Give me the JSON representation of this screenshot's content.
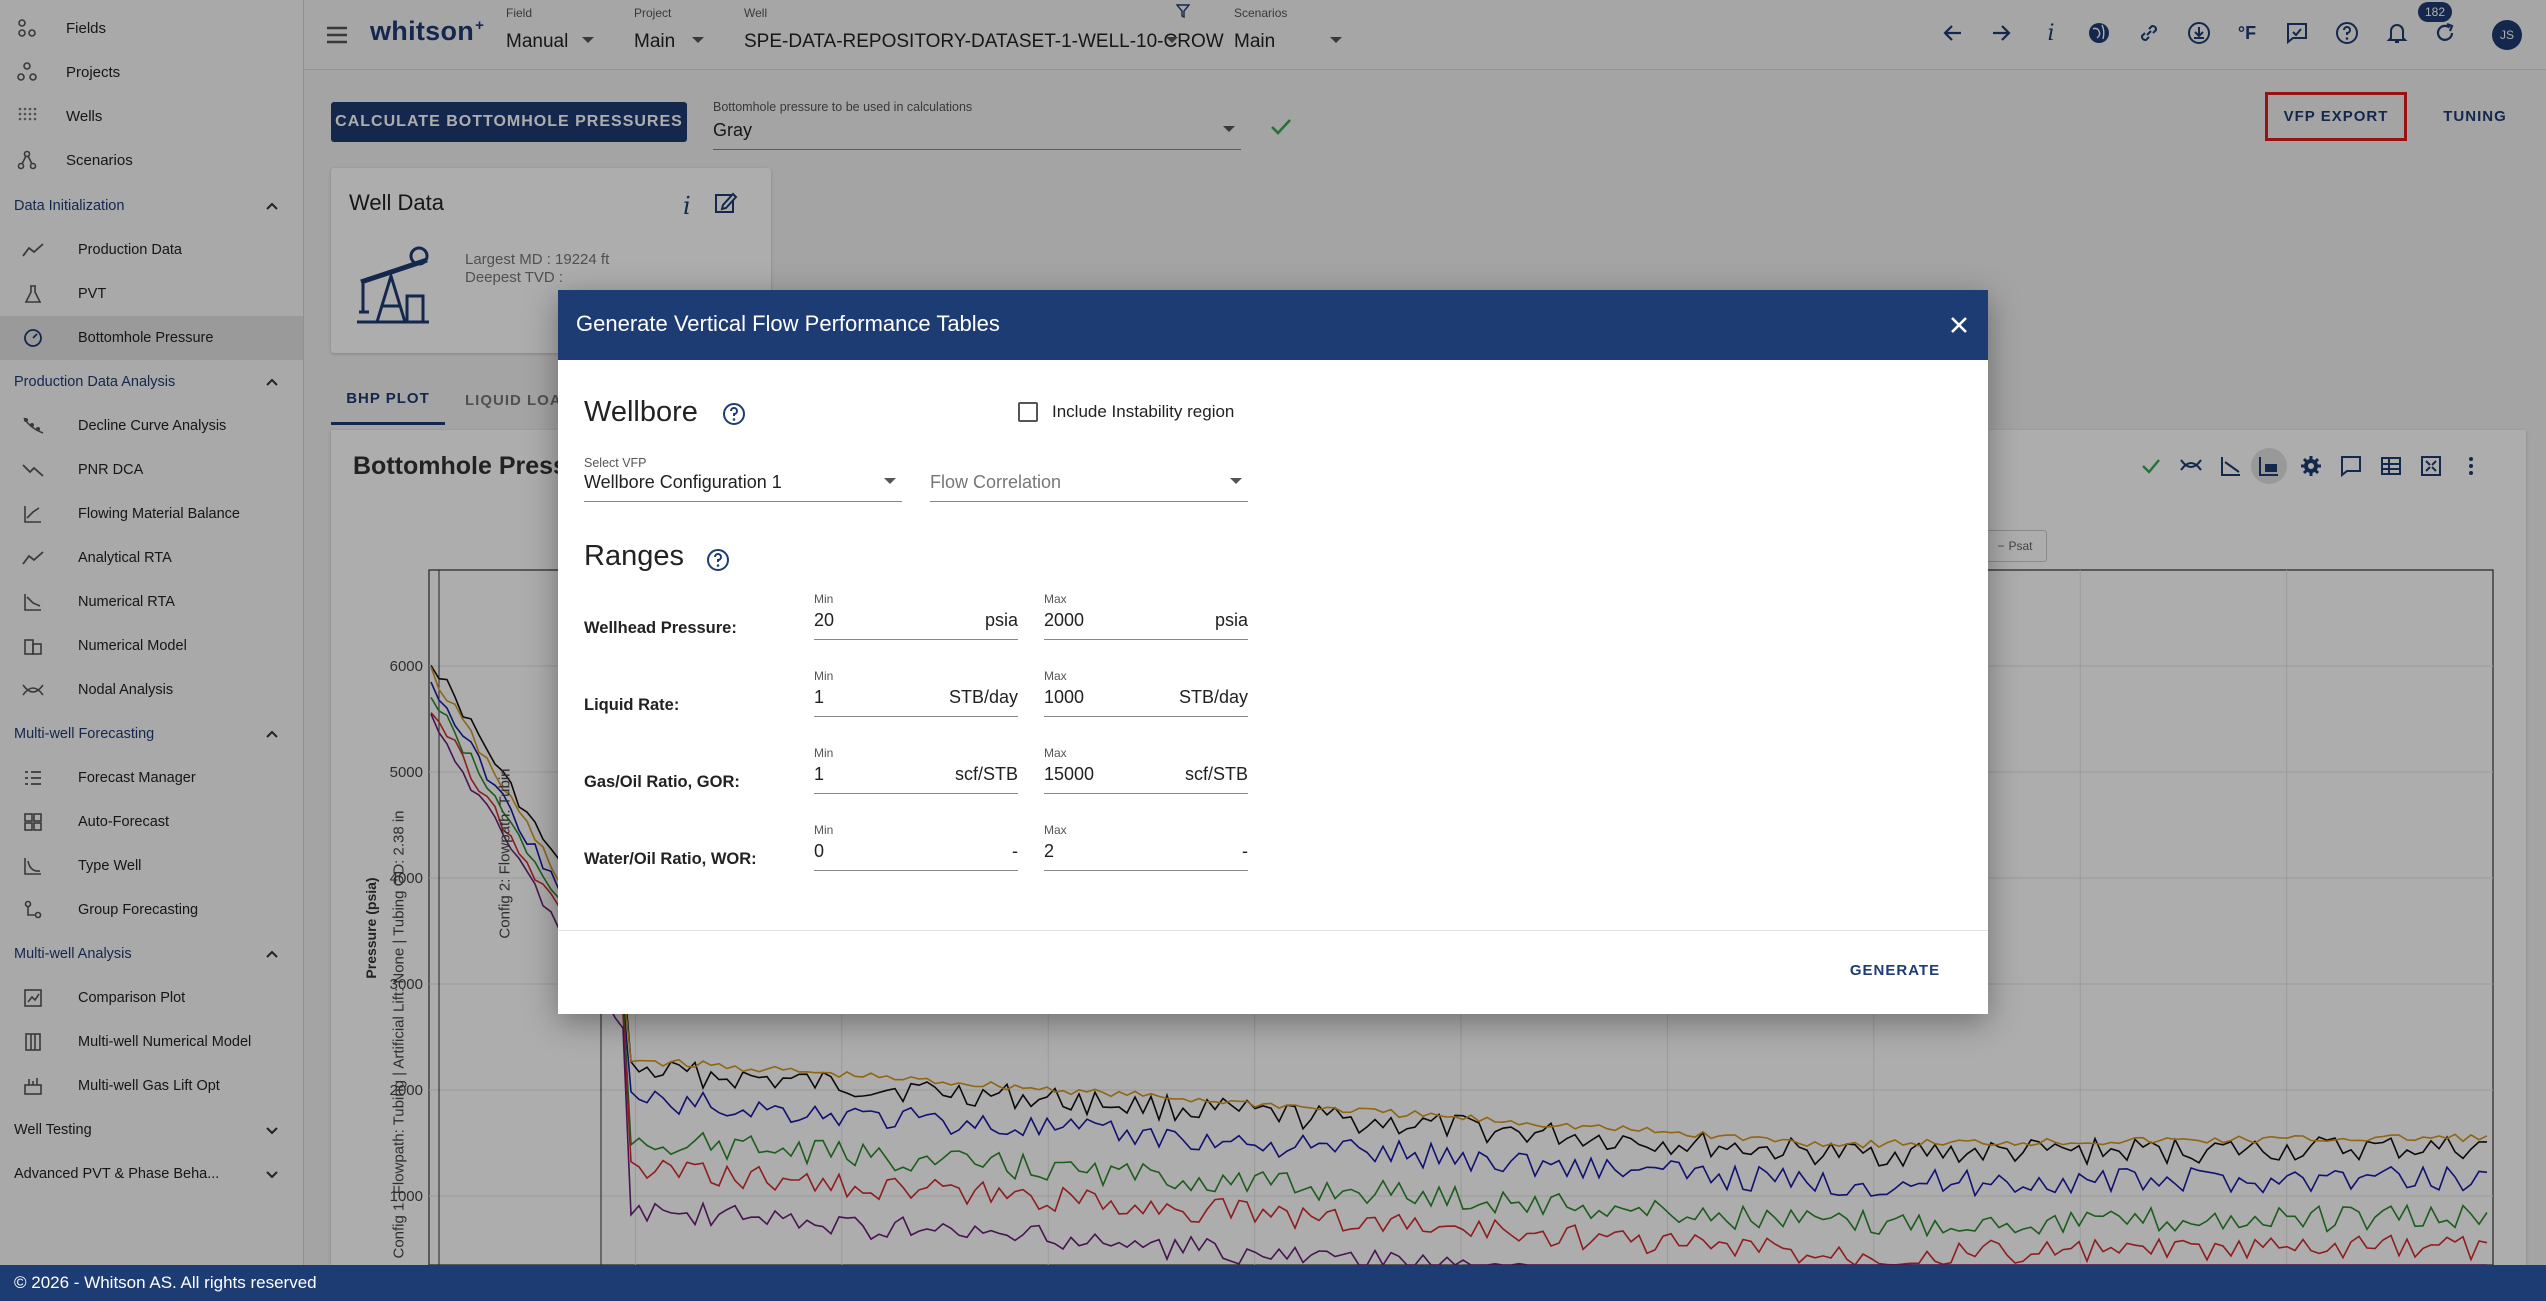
{
  "sidebar": {
    "top_items": [
      {
        "label": "Fields",
        "icon": "fields-icon"
      },
      {
        "label": "Projects",
        "icon": "projects-icon"
      },
      {
        "label": "Wells",
        "icon": "wells-icon"
      },
      {
        "label": "Scenarios",
        "icon": "scenarios-icon"
      }
    ],
    "sections": [
      {
        "title": "Data Initialization",
        "items": [
          {
            "label": "Production Data"
          },
          {
            "label": "PVT"
          },
          {
            "label": "Bottomhole Pressure",
            "active": true
          }
        ]
      },
      {
        "title": "Production Data Analysis",
        "items": [
          {
            "label": "Decline Curve Analysis"
          },
          {
            "label": "PNR DCA"
          },
          {
            "label": "Flowing Material Balance"
          },
          {
            "label": "Analytical RTA"
          },
          {
            "label": "Numerical RTA"
          },
          {
            "label": "Numerical Model"
          },
          {
            "label": "Nodal Analysis"
          }
        ]
      },
      {
        "title": "Multi-well Forecasting",
        "items": [
          {
            "label": "Forecast Manager"
          },
          {
            "label": "Auto-Forecast"
          },
          {
            "label": "Type Well"
          },
          {
            "label": "Group Forecasting"
          }
        ]
      },
      {
        "title": "Multi-well Analysis",
        "items": [
          {
            "label": "Comparison Plot"
          },
          {
            "label": "Multi-well Numerical Model"
          },
          {
            "label": "Multi-well Gas Lift Opt"
          }
        ]
      }
    ],
    "collapsed_sections": [
      "Well Testing",
      "Advanced PVT & Phase Beha..."
    ]
  },
  "topbar": {
    "logo": "whitson",
    "logo_sup": "+",
    "field": {
      "caption": "Field",
      "value": "Manual"
    },
    "project": {
      "caption": "Project",
      "value": "Main"
    },
    "well": {
      "caption": "Well",
      "value": "SPE-DATA-REPOSITORY-DATASET-1-WELL-10-CROW"
    },
    "scenarios": {
      "caption": "Scenarios",
      "value": "Main"
    },
    "notifications_count": "182",
    "avatar_initials": "JS",
    "temp_unit": "°F"
  },
  "main": {
    "calc_button": "CALCULATE BOTTOMHOLE PRESSURES",
    "bhp_select": {
      "caption": "Bottomhole pressure to be used in calculations",
      "value": "Gray"
    },
    "vfp_export": "VFP EXPORT",
    "tuning": "TUNING",
    "well_card": {
      "title": "Well Data",
      "largest_md": "Largest MD :  19224 ft",
      "deepest_tvd": "Deepest TVD :"
    },
    "tabs": [
      "BHP PLOT",
      "LIQUID LOA"
    ],
    "plot": {
      "title": "Bottomhole Pressure",
      "ylabel": "Pressure (psia)",
      "yticks": [
        "6000",
        "5000",
        "4000",
        "3000",
        "2000",
        "1000"
      ],
      "legend_item": "Psat",
      "config1_label": "Config 1: Flowpath: Tubing | Artificial Lift: None | Tubing OD: 2.38 in",
      "config2_label": "Config 2: Flowpath: Tubin"
    }
  },
  "dialog": {
    "title": "Generate Vertical Flow Performance Tables",
    "wellbore_title": "Wellbore",
    "include_instability": "Include Instability region",
    "select_vfp": {
      "caption": "Select VFP",
      "value": "Wellbore Configuration 1"
    },
    "flow_correlation": {
      "placeholder": "Flow Correlation"
    },
    "ranges_title": "Ranges",
    "rows": [
      {
        "label": "Wellhead Pressure:",
        "min": "20",
        "max": "2000",
        "unit": "psia"
      },
      {
        "label": "Liquid Rate:",
        "min": "1",
        "max": "1000",
        "unit": "STB/day"
      },
      {
        "label": "Gas/Oil Ratio, GOR:",
        "min": "1",
        "max": "15000",
        "unit": "scf/STB"
      },
      {
        "label": "Water/Oil Ratio, WOR:",
        "min": "0",
        "max": "2",
        "unit": "-"
      }
    ],
    "min_caption": "Min",
    "max_caption": "Max",
    "generate": "GENERATE"
  },
  "footer": {
    "text": "© 2026 - Whitson AS. All rights reserved"
  }
}
